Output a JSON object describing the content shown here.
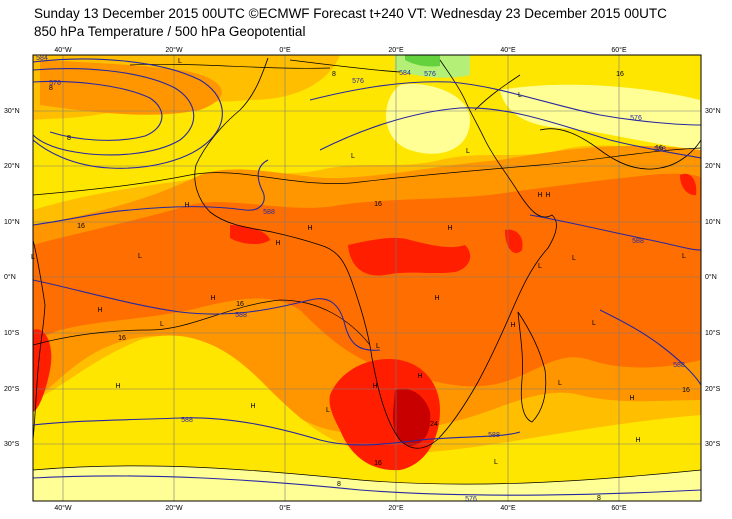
{
  "title_line1": "Sunday 13 December 2015 00UTC ©ECMWF Forecast t+240 VT: Wednesday 23 December 2015 00UTC",
  "title_line2": "850 hPa Temperature / 500 hPa Geopotential",
  "lon_labels": [
    "40°W",
    "20°W",
    "0°E",
    "20°E",
    "40°E",
    "60°E"
  ],
  "lat_labels": [
    "30°N",
    "20°N",
    "10°N",
    "0°N",
    "10°S",
    "20°S",
    "30°S"
  ],
  "temp_contour_labels": [
    "8",
    "8",
    "16",
    "16",
    "16",
    "16",
    "16",
    "16",
    "24",
    "16",
    "16",
    "8",
    "8",
    "8"
  ],
  "geopotential_labels": [
    "584",
    "576",
    "576",
    "584",
    "576",
    "588",
    "588",
    "588",
    "588",
    "588",
    "588",
    "588",
    "576",
    "576"
  ],
  "pressure_markers": [
    "L",
    "L",
    "L",
    "L",
    "H",
    "H",
    "H",
    "L",
    "H",
    "H",
    "H",
    "L",
    "H",
    "L",
    "H",
    "H",
    "H",
    "L",
    "H",
    "L",
    "L",
    "H",
    "L",
    "H",
    "H",
    "L",
    "H",
    "L",
    "L",
    "H",
    "L"
  ],
  "colors": {
    "yellow_pale": "#ffff96",
    "yellow": "#ffe600",
    "gold": "#ffbe00",
    "orange": "#ff9600",
    "dark_orange": "#ff6e00",
    "red": "#ff1e00",
    "dark_red": "#c80000",
    "green_light": "#b4f078",
    "green": "#64d23c",
    "geopotential_line": "#2828a0",
    "coast_line": "#000000"
  }
}
